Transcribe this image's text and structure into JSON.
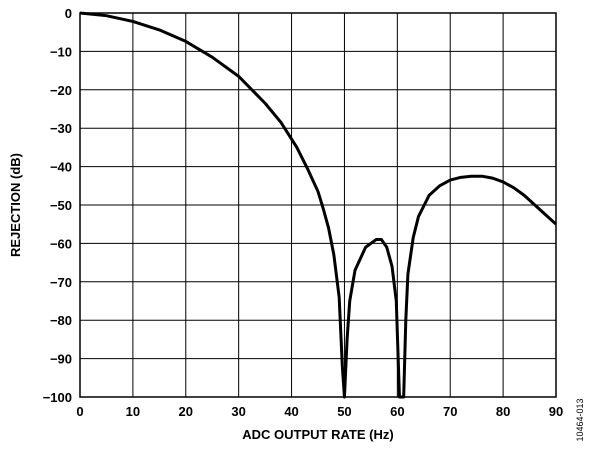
{
  "chart_data": {
    "type": "line",
    "xlabel": "ADC OUTPUT RATE (Hz)",
    "ylabel": "REJECTION (dB)",
    "xlim": [
      0,
      90
    ],
    "ylim": [
      -100,
      0
    ],
    "x_ticks": [
      "0",
      "10",
      "20",
      "30",
      "40",
      "50",
      "60",
      "70",
      "80",
      "90"
    ],
    "y_ticks": [
      "0",
      "−10",
      "−20",
      "−30",
      "−40",
      "−50",
      "−60",
      "−70",
      "−80",
      "−90",
      "−100"
    ],
    "grid": true,
    "figure_id": "10464-013",
    "series": [
      {
        "color": "#000000",
        "x": [
          0,
          5,
          10,
          15,
          20,
          25,
          30,
          35,
          38,
          41,
          43,
          45,
          46,
          47,
          48,
          49,
          49.6,
          50,
          50.5,
          51,
          52,
          54,
          56,
          57,
          58,
          59,
          59.8,
          60.4,
          60.8,
          61.2,
          61.6,
          62,
          63,
          64,
          66,
          68,
          70,
          72,
          74,
          76,
          78,
          80,
          82,
          84,
          86,
          88,
          90
        ],
        "y": [
          0,
          -0.7,
          -2.2,
          -4.4,
          -7.4,
          -11.5,
          -16.5,
          -23.5,
          -28.5,
          -35,
          -40.5,
          -46.5,
          -51,
          -56,
          -63,
          -74,
          -92,
          -100,
          -85,
          -75,
          -67,
          -61,
          -59,
          -59,
          -61,
          -66,
          -75,
          -100,
          -100,
          -100,
          -80,
          -68,
          -58.5,
          -53,
          -47.5,
          -45,
          -43.5,
          -42.8,
          -42.5,
          -42.5,
          -43,
          -44,
          -45.5,
          -47.5,
          -50,
          -52.5,
          -55
        ]
      }
    ]
  }
}
